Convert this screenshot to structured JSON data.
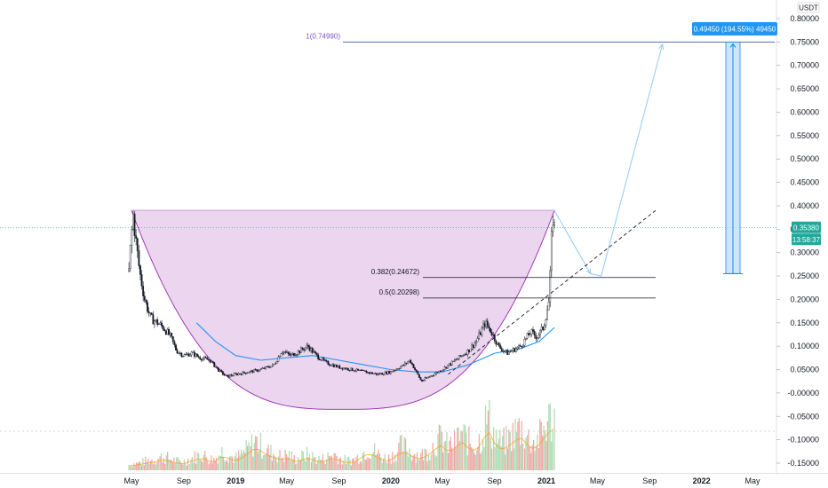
{
  "chart_data": {
    "type": "candlestick",
    "currency": "USDT",
    "y_axis": {
      "scale": "linear",
      "range": [
        -0.16,
        0.81
      ],
      "ticks": [
        "0.80000",
        "0.75000",
        "0.70000",
        "0.65000",
        "0.60000",
        "0.55000",
        "0.50000",
        "0.45000",
        "0.40000",
        "0.35000",
        "0.30000",
        "0.25000",
        "0.20000",
        "0.15000",
        "0.10000",
        "0.05000",
        "-0.00000",
        "-0.05000",
        "-0.10000",
        "-0.15000"
      ],
      "tick_values": [
        0.8,
        0.75,
        0.7,
        0.65,
        0.6,
        0.55,
        0.5,
        0.45,
        0.4,
        0.35,
        0.3,
        0.25,
        0.2,
        0.15,
        0.1,
        0.05,
        0.0,
        -0.05,
        -0.1,
        -0.15
      ]
    },
    "x_axis": {
      "ticks": [
        {
          "label": "May",
          "date": "2018-05-01",
          "bold": false
        },
        {
          "label": "Sep",
          "date": "2018-09-01",
          "bold": false
        },
        {
          "label": "2019",
          "date": "2019-01-01",
          "bold": true
        },
        {
          "label": "May",
          "date": "2019-05-01",
          "bold": false
        },
        {
          "label": "Sep",
          "date": "2019-09-01",
          "bold": false
        },
        {
          "label": "2020",
          "date": "2020-01-01",
          "bold": true
        },
        {
          "label": "May",
          "date": "2020-05-01",
          "bold": false
        },
        {
          "label": "Sep",
          "date": "2020-09-01",
          "bold": false
        },
        {
          "label": "2021",
          "date": "2021-01-01",
          "bold": true
        },
        {
          "label": "May",
          "date": "2021-05-01",
          "bold": false
        },
        {
          "label": "Sep",
          "date": "2021-09-01",
          "bold": false
        },
        {
          "label": "2022",
          "date": "2022-01-01",
          "bold": true
        },
        {
          "label": "May",
          "date": "2022-05-01",
          "bold": false
        }
      ]
    },
    "price_series": {
      "name": "Price",
      "approx_points": [
        [
          "2018-04-25",
          0.26
        ],
        [
          "2018-04-30",
          0.33
        ],
        [
          "2018-05-05",
          0.38
        ],
        [
          "2018-05-12",
          0.32
        ],
        [
          "2018-05-20",
          0.26
        ],
        [
          "2018-06-01",
          0.2
        ],
        [
          "2018-06-15",
          0.16
        ],
        [
          "2018-07-01",
          0.15
        ],
        [
          "2018-07-15",
          0.14
        ],
        [
          "2018-08-01",
          0.12
        ],
        [
          "2018-08-15",
          0.09
        ],
        [
          "2018-09-01",
          0.08
        ],
        [
          "2018-09-20",
          0.085
        ],
        [
          "2018-10-10",
          0.075
        ],
        [
          "2018-11-01",
          0.07
        ],
        [
          "2018-11-20",
          0.05
        ],
        [
          "2018-12-10",
          0.035
        ],
        [
          "2019-01-01",
          0.04
        ],
        [
          "2019-02-01",
          0.045
        ],
        [
          "2019-03-01",
          0.05
        ],
        [
          "2019-04-01",
          0.06
        ],
        [
          "2019-04-20",
          0.09
        ],
        [
          "2019-05-10",
          0.08
        ],
        [
          "2019-06-01",
          0.09
        ],
        [
          "2019-06-20",
          0.1
        ],
        [
          "2019-07-10",
          0.08
        ],
        [
          "2019-08-01",
          0.065
        ],
        [
          "2019-09-01",
          0.055
        ],
        [
          "2019-10-01",
          0.05
        ],
        [
          "2019-11-01",
          0.045
        ],
        [
          "2019-12-01",
          0.04
        ],
        [
          "2020-01-01",
          0.045
        ],
        [
          "2020-02-01",
          0.06
        ],
        [
          "2020-02-15",
          0.07
        ],
        [
          "2020-03-13",
          0.025
        ],
        [
          "2020-04-01",
          0.035
        ],
        [
          "2020-05-01",
          0.05
        ],
        [
          "2020-06-01",
          0.07
        ],
        [
          "2020-07-01",
          0.09
        ],
        [
          "2020-07-20",
          0.11
        ],
        [
          "2020-08-10",
          0.15
        ],
        [
          "2020-08-25",
          0.13
        ],
        [
          "2020-09-10",
          0.1
        ],
        [
          "2020-10-01",
          0.085
        ],
        [
          "2020-11-01",
          0.1
        ],
        [
          "2020-11-25",
          0.13
        ],
        [
          "2020-12-10",
          0.12
        ],
        [
          "2020-12-25",
          0.14
        ],
        [
          "2021-01-08",
          0.2
        ],
        [
          "2021-01-12",
          0.3
        ],
        [
          "2021-01-16",
          0.38
        ],
        [
          "2021-01-20",
          0.354
        ]
      ]
    },
    "moving_average": {
      "name": "Moving average",
      "color": "#2196f3",
      "approx_points": [
        [
          "2018-10-01",
          0.15
        ],
        [
          "2018-11-15",
          0.11
        ],
        [
          "2019-01-01",
          0.08
        ],
        [
          "2019-03-01",
          0.07
        ],
        [
          "2019-05-01",
          0.075
        ],
        [
          "2019-07-01",
          0.08
        ],
        [
          "2019-09-01",
          0.07
        ],
        [
          "2019-11-01",
          0.06
        ],
        [
          "2020-01-01",
          0.05
        ],
        [
          "2020-03-01",
          0.045
        ],
        [
          "2020-05-01",
          0.045
        ],
        [
          "2020-07-01",
          0.06
        ],
        [
          "2020-09-01",
          0.085
        ],
        [
          "2020-11-01",
          0.095
        ],
        [
          "2020-12-15",
          0.11
        ],
        [
          "2021-01-20",
          0.14
        ]
      ]
    },
    "volume": {
      "approx_relative": [
        0.1,
        0.12,
        0.15,
        0.18,
        0.2,
        0.25,
        0.22,
        0.18,
        0.15,
        0.2,
        0.25,
        0.3,
        0.22,
        0.2,
        0.35,
        0.28,
        0.22,
        0.3,
        0.4,
        0.55,
        0.45,
        0.35,
        0.3,
        0.25,
        0.3,
        0.2,
        0.25,
        0.3,
        0.22,
        0.2,
        0.25,
        0.3,
        0.2,
        0.18,
        0.2,
        0.3,
        0.4,
        0.35,
        0.25,
        0.22,
        0.3,
        0.45,
        0.4,
        0.3,
        0.28,
        0.35,
        0.5,
        0.6,
        0.45,
        0.5,
        0.7,
        0.55,
        0.45,
        0.6,
        1.0,
        0.65,
        0.5,
        0.55,
        0.7,
        0.8,
        0.6,
        0.5,
        0.65,
        0.9,
        1.0
      ],
      "up_color": "#a5d6a7",
      "down_color": "#ef9a9a"
    },
    "annotations": {
      "cup": {
        "left_rim": 0.39,
        "bottom": -0.035,
        "start": "2018-05-01",
        "end": "2021-01-20",
        "color": "#e1bee7"
      },
      "fib_levels": [
        {
          "label": "0.382(0.24672)",
          "value": 0.24672
        },
        {
          "label": "0.5(0.20298)",
          "value": 0.20298
        }
      ],
      "target": {
        "label": "1(0.74990)",
        "value": 0.7499
      },
      "measure": {
        "label": "0.49450 (194.55%) 49450",
        "from": 0.255,
        "to": 0.7499
      },
      "current_price": {
        "label": "0.35380",
        "value": 0.3538
      },
      "countdown": "13:58:37",
      "projection_points": [
        [
          "2021-01-20",
          0.39
        ],
        [
          "2021-04-15",
          0.255
        ],
        [
          "2021-05-10",
          0.25
        ],
        [
          "2021-10-01",
          0.745
        ]
      ],
      "trendline": [
        [
          "2020-05-15",
          0.04
        ],
        [
          "2021-09-15",
          0.39
        ]
      ]
    }
  }
}
